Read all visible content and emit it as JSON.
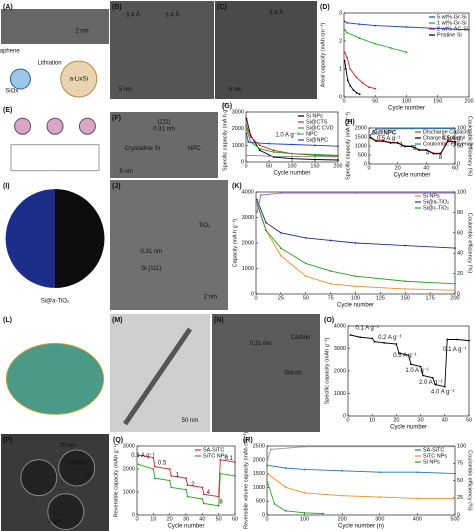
{
  "panels": [
    {
      "label": "(A)",
      "texts": [
        "2 nm",
        "Graphene",
        "SiOx",
        "Lithiation",
        "a-LixSi"
      ]
    },
    {
      "label": "(B)",
      "texts": [
        "3.4 Å",
        "3.4 Å",
        "5 nm"
      ]
    },
    {
      "label": "(C)",
      "texts": [
        "3.8 Å",
        "5 nm"
      ]
    },
    {
      "label": "(D)",
      "chart": {
        "type": "line",
        "xlabel": "Cycle number",
        "ylabel": "Areal capacity (mAh cm⁻²)",
        "xlim": [
          0,
          200
        ],
        "xticks": [
          0,
          50,
          100,
          150,
          200
        ],
        "ylim": [
          0,
          3
        ],
        "yticks": [
          0,
          1,
          2,
          3
        ],
        "series": [
          {
            "name": "5 wt%-Gr-Si",
            "color": "#1f3fbf",
            "x": [
              1,
              5,
              25,
              50,
              100,
              150,
              200
            ],
            "values": [
              2.7,
              2.65,
              2.6,
              2.55,
              2.5,
              2.45,
              2.4
            ]
          },
          {
            "name": "1 wt%-Gr-Si",
            "color": "#2ca02c",
            "x": [
              1,
              5,
              25,
              50,
              75,
              100
            ],
            "values": [
              2.4,
              2.3,
              2.1,
              1.9,
              1.75,
              1.6
            ]
          },
          {
            "name": "2 wt%-AC-Si",
            "color": "#d62728",
            "x": [
              1,
              5,
              10,
              20,
              30,
              40,
              50
            ],
            "values": [
              1.6,
              1.4,
              1.0,
              0.7,
              0.5,
              0.35,
              0.3
            ]
          },
          {
            "name": "Pristine Si",
            "color": "#000000",
            "x": [
              1,
              3,
              6,
              10,
              15,
              20,
              25
            ],
            "values": [
              1.3,
              1.0,
              0.6,
              0.4,
              0.25,
              0.15,
              0.1
            ]
          }
        ]
      }
    },
    {
      "label": "(E)",
      "texts": []
    },
    {
      "label": "(F)",
      "texts": [
        "(111)",
        "0.31 nm",
        "Crystalline Si",
        "NPC",
        "5 nm"
      ]
    },
    {
      "label": "(G)",
      "texts": [
        "1.0 A g⁻¹"
      ],
      "chart": {
        "type": "line",
        "xlabel": "Cycle number",
        "ylabel": "Specific capacity (mA h g⁻¹)",
        "xlim": [
          0,
          200
        ],
        "xticks": [
          0,
          50,
          100,
          150,
          200
        ],
        "ylim": [
          0,
          3000
        ],
        "yticks": [
          0,
          1000,
          2000,
          3000
        ],
        "series": [
          {
            "name": "Si NPs",
            "color": "#000000",
            "x": [
              1,
              10,
              30,
              60,
              100,
              150,
              200
            ],
            "values": [
              2600,
              1600,
              700,
              300,
              200,
              150,
              120
            ]
          },
          {
            "name": "Si@CTS",
            "color": "#d62728",
            "x": [
              1,
              10,
              30,
              60,
              100,
              150,
              200
            ],
            "values": [
              2200,
              1500,
              1000,
              700,
              500,
              400,
              350
            ]
          },
          {
            "name": "Si@C CVD",
            "color": "#2ca02c",
            "x": [
              1,
              10,
              30,
              60,
              100,
              150,
              200
            ],
            "values": [
              2000,
              1200,
              800,
              600,
              500,
              450,
              400
            ]
          },
          {
            "name": "NPC",
            "color": "#888888",
            "x": [
              1,
              50,
              100,
              150,
              200
            ],
            "values": [
              400,
              350,
              330,
              320,
              310
            ]
          },
          {
            "name": "Si@NPC",
            "color": "#1f3fbf",
            "x": [
              1,
              5,
              20,
              50,
              100,
              150,
              200
            ],
            "values": [
              1700,
              1200,
              1150,
              1100,
              1050,
              1000,
              950
            ]
          }
        ]
      }
    },
    {
      "label": "(H)",
      "texts": [
        "0.5 A g⁻¹",
        "1",
        "2",
        "4",
        "8",
        "0.5 A g⁻¹"
      ],
      "chart": {
        "type": "line",
        "title": "Si@NPC",
        "xlabel": "Cycle number",
        "ylabel": "Specific capacity (mA h g⁻¹)",
        "y2label": "Coulombic efficiency (%)",
        "xlim": [
          0,
          60
        ],
        "xticks": [
          0,
          20,
          40,
          60
        ],
        "ylim": [
          0,
          2000
        ],
        "yticks": [
          0,
          500,
          1000,
          1500,
          2000
        ],
        "y2lim": [
          0,
          100
        ],
        "y2ticks": [
          0,
          50,
          100
        ],
        "series": [
          {
            "name": "Discharge Capacity",
            "color": "#d62728",
            "x": [
              1,
              5,
              10,
              15,
              20,
              25,
              30,
              35,
              40,
              45,
              50,
              55,
              60
            ],
            "values": [
              1500,
              1300,
              1300,
              1200,
              1200,
              1000,
              1000,
              800,
              800,
              600,
              600,
              1300,
              1250
            ]
          },
          {
            "name": "Charge Capacity",
            "color": "#000000",
            "x": [
              1,
              5,
              10,
              15,
              20,
              25,
              30,
              35,
              40,
              45,
              50,
              55,
              60
            ],
            "values": [
              1450,
              1270,
              1270,
              1170,
              1170,
              970,
              970,
              770,
              770,
              570,
              570,
              1270,
              1220
            ]
          },
          {
            "name": "Coulombic efficiency",
            "color": "#1f77b4",
            "axis": "y2",
            "x": [
              1,
              5,
              30,
              60
            ],
            "values": [
              80,
              97,
              98,
              98
            ]
          }
        ]
      }
    },
    {
      "label": "(I)",
      "texts": [
        "Si@a-TiO₂"
      ]
    },
    {
      "label": "(J)",
      "texts": [
        "0.31 nm",
        "Si (111)",
        "TiO₂",
        "2 nm"
      ]
    },
    {
      "label": "(K)",
      "chart": {
        "type": "line",
        "xlabel": "Cycle number",
        "ylabel": "Capacity (mA h g⁻¹)",
        "y2label": "Coulombic efficiency (%)",
        "xlim": [
          0,
          200
        ],
        "xticks": [
          0,
          25,
          50,
          75,
          100,
          125,
          150,
          175,
          200
        ],
        "ylim": [
          0,
          4000
        ],
        "yticks": [
          0,
          1000,
          2000,
          3000,
          4000
        ],
        "y2lim": [
          0,
          100
        ],
        "y2ticks": [
          0,
          20,
          40,
          60,
          80,
          100
        ],
        "series": [
          {
            "name": "Si NPs",
            "color": "#f28e2b",
            "x": [
              1,
              10,
              25,
              50,
              75,
              100,
              150,
              200
            ],
            "values": [
              3500,
              2500,
              1500,
              700,
              400,
              300,
              200,
              150
            ]
          },
          {
            "name": "Si@a-TiO₂",
            "color": "#1f2f8f",
            "x": [
              1,
              10,
              25,
              50,
              75,
              100,
              150,
              200
            ],
            "values": [
              3700,
              2800,
              2400,
              2200,
              2100,
              2000,
              1900,
              1800
            ]
          },
          {
            "name": "Si@c-TiO₂",
            "color": "#2ca02c",
            "x": [
              1,
              10,
              25,
              50,
              75,
              100,
              150,
              200
            ],
            "values": [
              3600,
              2500,
              1800,
              1200,
              900,
              700,
              500,
              400
            ]
          },
          {
            "color": "#9467bd",
            "axis": "y2",
            "x": [
              1,
              5,
              25,
              100,
              200
            ],
            "values": [
              80,
              97,
              99,
              99,
              99
            ]
          }
        ]
      }
    },
    {
      "label": "(L)",
      "texts": []
    },
    {
      "label": "(M)",
      "texts": [
        "50 nm"
      ]
    },
    {
      "label": "(N)",
      "texts": [
        "0.31 nm",
        "Carbon",
        "Silicon"
      ]
    },
    {
      "label": "(O)",
      "texts": [
        "0.1 A g⁻¹",
        "0.2 A g⁻¹",
        "0.5 A g⁻¹",
        "1.0 A g⁻¹",
        "2.0 A g⁻¹",
        "4.0 A g⁻¹",
        "0.1 A g⁻¹"
      ],
      "chart": {
        "type": "line",
        "xlabel": "Cycle number",
        "ylabel": "Specific capacity (mAh g⁻¹)",
        "xlim": [
          0,
          50
        ],
        "xticks": [
          0,
          10,
          20,
          30,
          40,
          50
        ],
        "ylim": [
          0,
          4000
        ],
        "yticks": [
          0,
          1000,
          2000,
          3000,
          4000
        ],
        "series": [
          {
            "color": "#000000",
            "x": [
              1,
              5,
              10,
              11,
              15,
              20,
              21,
              25,
              26,
              30,
              31,
              35,
              36,
              40,
              41,
              45,
              50
            ],
            "values": [
              3600,
              3500,
              3450,
              3300,
              3250,
              3200,
              2800,
              2700,
              2300,
              2200,
              1800,
              1700,
              1400,
              1300,
              3400,
              3400,
              3350
            ]
          }
        ]
      }
    },
    {
      "label": "(P)",
      "texts": [
        "2 μm",
        "20 nm",
        "Carbon",
        "Si"
      ]
    },
    {
      "label": "(Q)",
      "texts": [
        "0.1 A g⁻¹",
        "0.5",
        "1",
        "2",
        "4",
        "8",
        "0.1"
      ],
      "chart": {
        "type": "line",
        "xlabel": "Cycle number",
        "ylabel": "Reversible capacity (mAh g⁻¹)",
        "xlim": [
          0,
          60
        ],
        "xticks": [
          0,
          10,
          20,
          30,
          40,
          50,
          60
        ],
        "ylim": [
          0,
          3000
        ],
        "yticks": [
          0,
          1000,
          2000,
          3000
        ],
        "series": [
          {
            "name": "SA-SiTC",
            "color": "#d62728",
            "x": [
              1,
              10,
              11,
              20,
              21,
              30,
              31,
              40,
              41,
              50,
              51,
              60
            ],
            "values": [
              2600,
              2500,
              2100,
              2000,
              1700,
              1600,
              1300,
              1200,
              900,
              800,
              2400,
              2300
            ]
          },
          {
            "name": "SiTC NPs",
            "color": "#2ca02c",
            "x": [
              1,
              10,
              11,
              20,
              21,
              30,
              31,
              40,
              41,
              50,
              51,
              60
            ],
            "values": [
              2200,
              2000,
              1600,
              1500,
              1200,
              1100,
              800,
              700,
              500,
              400,
              1800,
              1700
            ]
          }
        ]
      }
    },
    {
      "label": "(R)",
      "chart": {
        "type": "line",
        "xlabel": "Cycle number (n)",
        "ylabel": "Reversible volume capacity (mAh cm⁻³)",
        "y2label": "Coulombic efficiency (%)",
        "xlim": [
          0,
          500
        ],
        "xticks": [
          0,
          100,
          200,
          300,
          400,
          500
        ],
        "ylim": [
          0,
          2500
        ],
        "yticks": [
          0,
          500,
          1000,
          1500,
          2000,
          2500
        ],
        "y2lim": [
          0,
          100
        ],
        "y2ticks": [
          0,
          25,
          50,
          75,
          100
        ],
        "series": [
          {
            "name": "SA-SiTC",
            "color": "#1f77b4",
            "x": [
              1,
              50,
              100,
              200,
              300,
              400,
              500
            ],
            "values": [
              1800,
              1700,
              1650,
              1600,
              1550,
              1550,
              1500
            ]
          },
          {
            "name": "SiTC NPs",
            "color": "#f28e2b",
            "x": [
              1,
              50,
              100,
              200,
              300,
              400,
              500
            ],
            "values": [
              1500,
              1000,
              800,
              700,
              650,
              600,
              600
            ]
          },
          {
            "name": "Si NPs",
            "color": "#2ca02c",
            "x": [
              1,
              20,
              50,
              100,
              150
            ],
            "values": [
              1200,
              400,
              150,
              80,
              50
            ]
          },
          {
            "color": "#999999",
            "axis": "y2",
            "x": [
              1,
              10,
              100,
              500
            ],
            "values": [
              80,
              95,
              99,
              99
            ]
          }
        ]
      }
    }
  ]
}
